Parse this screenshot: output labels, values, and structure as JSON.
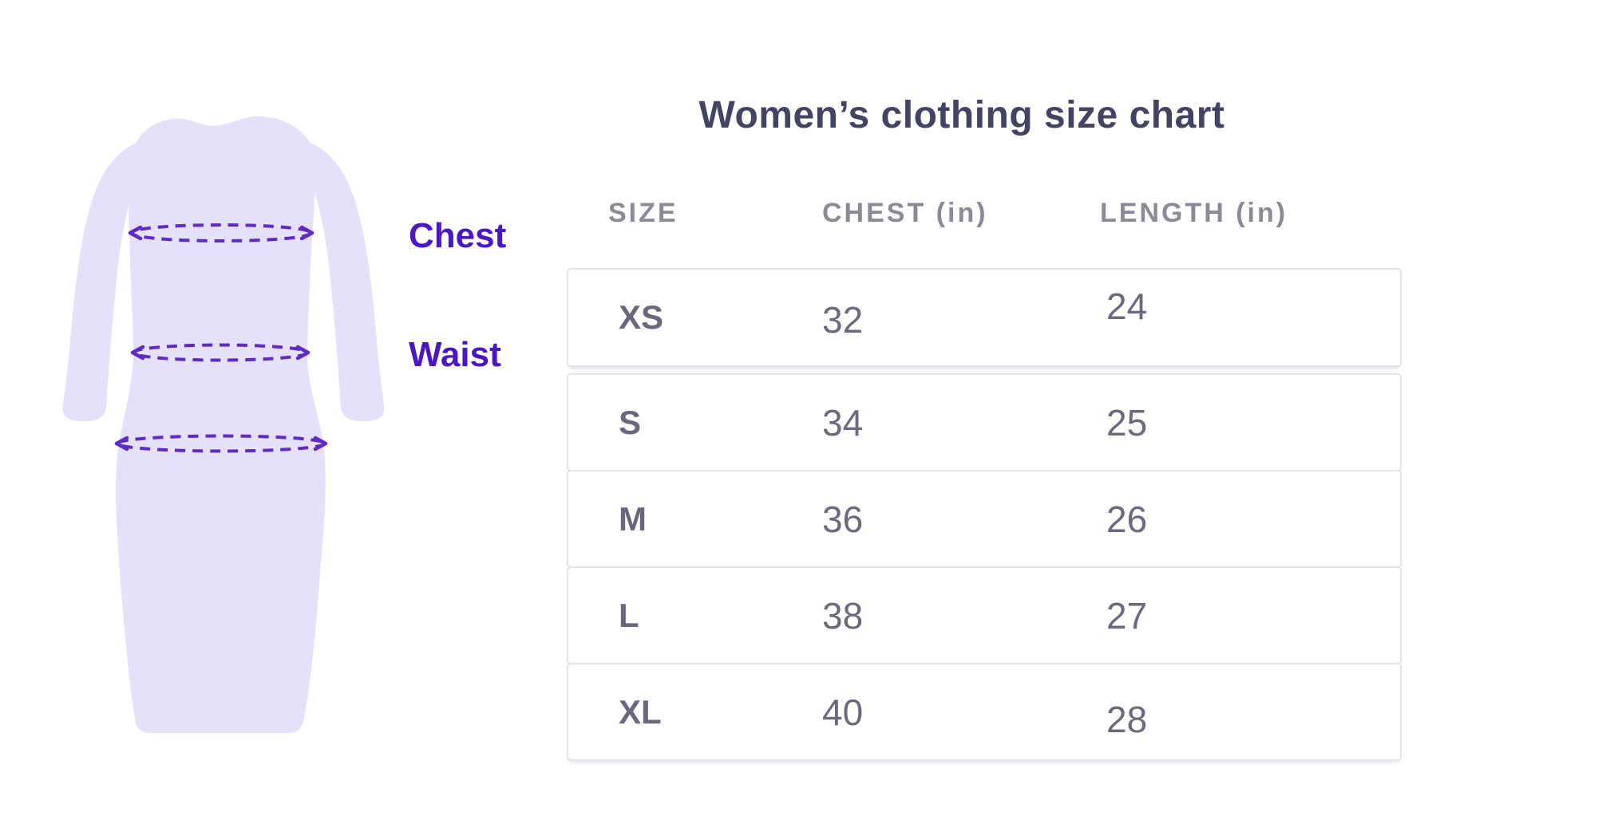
{
  "title": "Women’s clothing size chart",
  "illustration": {
    "chest_label": "Chest",
    "waist_label": "Waist"
  },
  "chart_data": {
    "type": "table",
    "title": "Women’s clothing size chart",
    "columns": [
      "SIZE",
      "CHEST (in)",
      "LENGTH (in)"
    ],
    "rows": [
      [
        "XS",
        32,
        24
      ],
      [
        "S",
        34,
        25
      ],
      [
        "M",
        36,
        26
      ],
      [
        "L",
        38,
        27
      ],
      [
        "XL",
        40,
        28
      ]
    ],
    "annotations": [
      "Chest",
      "Waist"
    ]
  },
  "colors": {
    "dress_fill": "#e5e1fa",
    "dash_color": "#5e2cc2",
    "label_color": "#4a17c5",
    "title_color": "#454363",
    "header_color": "#8b8a97",
    "value_color": "#6b6a7c",
    "size_color": "#6a687e",
    "border_color": "#e4e3e7"
  }
}
